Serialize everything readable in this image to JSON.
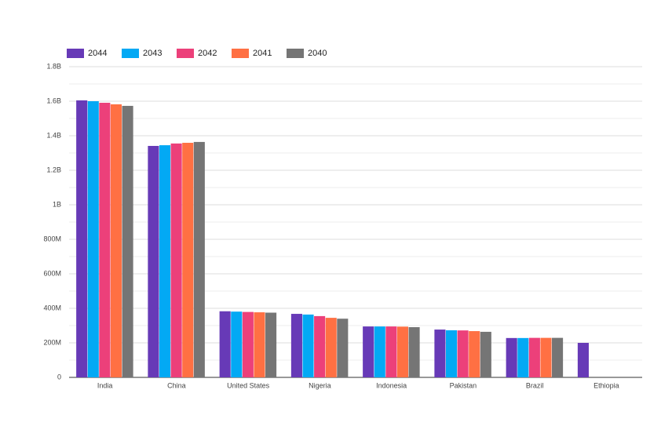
{
  "chart_data": {
    "type": "bar",
    "categories": [
      "India",
      "China",
      "United States",
      "Nigeria",
      "Indonesia",
      "Pakistan",
      "Brazil",
      "Ethiopia"
    ],
    "series": [
      {
        "name": "2044",
        "color": "#673ab7",
        "values": [
          1605000000,
          1341000000,
          383000000,
          368000000,
          295000000,
          277000000,
          228000000,
          200000000
        ]
      },
      {
        "name": "2043",
        "color": "#03a9f4",
        "values": [
          1600000000,
          1345000000,
          381000000,
          364000000,
          295000000,
          273000000,
          228000000,
          null
        ]
      },
      {
        "name": "2042",
        "color": "#ec407a",
        "values": [
          1591000000,
          1355000000,
          379000000,
          355000000,
          295000000,
          272000000,
          229000000,
          null
        ]
      },
      {
        "name": "2041",
        "color": "#ff7043",
        "values": [
          1582000000,
          1359000000,
          377000000,
          345000000,
          294000000,
          268000000,
          229000000,
          null
        ]
      },
      {
        "name": "2040",
        "color": "#757575",
        "values": [
          1573000000,
          1364000000,
          375000000,
          340000000,
          291000000,
          264000000,
          229000000,
          null
        ]
      }
    ],
    "ylim": [
      0,
      1800000000
    ],
    "yticks": [
      0,
      {
        "value": 200000000,
        "label": "200M"
      },
      {
        "value": 400000000,
        "label": "400M"
      },
      {
        "value": 600000000,
        "label": "600M"
      },
      {
        "value": 800000000,
        "label": "800M"
      },
      {
        "value": 1000000000,
        "label": "1B"
      },
      {
        "value": 1200000000,
        "label": "1.2B"
      },
      {
        "value": 1400000000,
        "label": "1.4B"
      },
      {
        "value": 1600000000,
        "label": "1.6B"
      },
      {
        "value": 1800000000,
        "label": "1.8B"
      }
    ],
    "grid": true,
    "minor_grid": true,
    "legend": "top"
  }
}
